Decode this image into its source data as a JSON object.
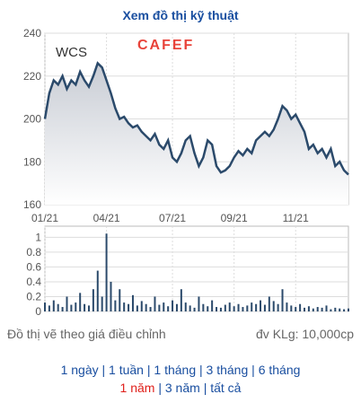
{
  "title": "Xem đồ thị kỹ thuật",
  "chart_data": [
    {
      "type": "line",
      "title": "WCS",
      "logo": "CAFEF",
      "color": "#2b4a6b",
      "values": [
        200,
        212,
        218,
        216,
        220,
        214,
        218,
        216,
        222,
        218,
        215,
        220,
        226,
        224,
        218,
        212,
        205,
        200,
        201,
        198,
        196,
        197,
        194,
        192,
        190,
        193,
        188,
        186,
        190,
        182,
        180,
        184,
        190,
        192,
        184,
        178,
        182,
        190,
        188,
        178,
        175,
        176,
        178,
        182,
        185,
        183,
        186,
        184,
        190,
        192,
        194,
        192,
        195,
        200,
        206,
        204,
        200,
        202,
        198,
        194,
        186,
        188,
        184,
        186,
        182,
        186,
        178,
        180,
        176,
        174
      ],
      "xlim": [
        0,
        69
      ],
      "xticks": [
        {
          "value": 0,
          "label": "01/21"
        },
        {
          "value": 14,
          "label": "04/21"
        },
        {
          "value": 29,
          "label": "07/21"
        },
        {
          "value": 43,
          "label": "09/21"
        },
        {
          "value": 57,
          "label": "11/21"
        }
      ],
      "ylim": [
        160,
        240
      ],
      "yticks": [
        160,
        180,
        200,
        220,
        240
      ],
      "grid": true
    },
    {
      "type": "bar",
      "color": "#2b4a6b",
      "values": [
        0.12,
        0.08,
        0.15,
        0.1,
        0.06,
        0.2,
        0.09,
        0.12,
        0.25,
        0.1,
        0.08,
        0.3,
        0.55,
        0.2,
        1.05,
        0.4,
        0.15,
        0.3,
        0.12,
        0.1,
        0.22,
        0.08,
        0.14,
        0.1,
        0.06,
        0.2,
        0.09,
        0.12,
        0.07,
        0.15,
        0.1,
        0.3,
        0.12,
        0.08,
        0.05,
        0.2,
        0.1,
        0.07,
        0.15,
        0.06,
        0.05,
        0.09,
        0.12,
        0.07,
        0.1,
        0.06,
        0.08,
        0.12,
        0.1,
        0.15,
        0.09,
        0.2,
        0.14,
        0.1,
        0.3,
        0.12,
        0.08,
        0.06,
        0.1,
        0.05,
        0.07,
        0.04,
        0.06,
        0.05,
        0.08,
        0.03,
        0.05,
        0.04,
        0.03,
        0.04
      ],
      "xlim": [
        0,
        69
      ],
      "ylim": [
        0,
        1.15
      ],
      "yticks": [
        0,
        0.2,
        0.4,
        0.6,
        0.8,
        1
      ]
    }
  ],
  "footer": {
    "note": "Đồ thị vẽ theo giá điều chỉnh",
    "unit": "đv KLg: 10,000cp"
  },
  "separator": "|",
  "periods": [
    [
      "1 ngày",
      "1 tuần",
      "1 tháng",
      "3 tháng",
      "6 tháng"
    ],
    [
      "1 năm",
      "3 năm",
      "tất cả"
    ]
  ],
  "active_period": "1 năm"
}
